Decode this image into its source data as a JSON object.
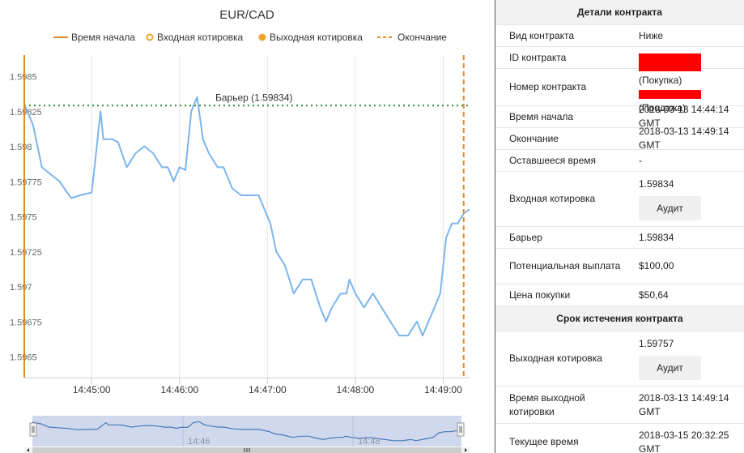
{
  "chart": {
    "title": "EUR/CAD",
    "legend": [
      {
        "name": "Время начала",
        "marker": "solid-line"
      },
      {
        "name": "Входная котировка",
        "marker": "ring"
      },
      {
        "name": "Выходная котировка",
        "marker": "dot"
      },
      {
        "name": "Окончание",
        "marker": "dashed-line"
      }
    ],
    "barrier_label": "Барьер (1.59834)",
    "navigator_labels": [
      "14:46",
      "14:48"
    ]
  },
  "chart_data": {
    "type": "line",
    "title": "EUR/CAD",
    "xlabel": "",
    "ylabel": "",
    "x_ticks": [
      "14:45:00",
      "14:46:00",
      "14:47:00",
      "14:48:00",
      "14:49:00"
    ],
    "y_ticks": [
      "1.5985",
      "1.59825",
      "1.598",
      "1.59775",
      "1.5975",
      "1.59725",
      "1.597",
      "1.59675",
      "1.5965"
    ],
    "xlim": [
      "14:44:14",
      "14:49:18"
    ],
    "ylim": [
      1.5964,
      1.5987
    ],
    "grid": "vertical",
    "barrier": 1.59834,
    "entry_spot": 1.59834,
    "exit_spot": 1.59757,
    "start_time": "14:44:14",
    "end_time": "14:49:14",
    "series": [
      {
        "x": [
          "14:44:14",
          "14:44:20",
          "14:44:26",
          "14:44:32",
          "14:44:38",
          "14:44:46",
          "14:44:52",
          "14:45:00",
          "14:45:02",
          "14:45:06",
          "14:45:08",
          "14:45:14",
          "14:45:18",
          "14:45:24",
          "14:45:30",
          "14:45:36",
          "14:45:42",
          "14:45:48",
          "14:45:52",
          "14:45:56",
          "14:46:00",
          "14:46:04",
          "14:46:08",
          "14:46:12",
          "14:46:16",
          "14:46:20",
          "14:46:26",
          "14:46:30",
          "14:46:36",
          "14:46:42",
          "14:46:48",
          "14:46:54",
          "14:47:02",
          "14:47:06",
          "14:47:12",
          "14:47:18",
          "14:47:24",
          "14:47:30",
          "14:47:36",
          "14:47:40",
          "14:47:44",
          "14:47:50",
          "14:47:54",
          "14:47:56",
          "14:48:00",
          "14:48:06",
          "14:48:12",
          "14:48:18",
          "14:48:24",
          "14:48:30",
          "14:48:36",
          "14:48:42",
          "14:48:46",
          "14:48:50",
          "14:48:54",
          "14:48:58",
          "14:49:02",
          "14:49:06",
          "14:49:10",
          "14:49:14",
          "14:49:18"
        ],
        "y": [
          1.59835,
          1.5982,
          1.5979,
          1.59785,
          1.5978,
          1.59768,
          1.5977,
          1.59772,
          1.5979,
          1.5983,
          1.5981,
          1.5981,
          1.59808,
          1.5979,
          1.598,
          1.59805,
          1.598,
          1.5979,
          1.5979,
          1.5978,
          1.5979,
          1.59788,
          1.5983,
          1.5984,
          1.5981,
          1.598,
          1.5979,
          1.5979,
          1.59775,
          1.5977,
          1.5977,
          1.5977,
          1.5975,
          1.5973,
          1.5972,
          1.597,
          1.5971,
          1.5971,
          1.5969,
          1.5968,
          1.5969,
          1.597,
          1.597,
          1.5971,
          1.597,
          1.5969,
          1.597,
          1.5969,
          1.5968,
          1.5967,
          1.5967,
          1.5968,
          1.5967,
          1.5968,
          1.5969,
          1.597,
          1.5974,
          1.5975,
          1.5975,
          1.59757,
          1.5976
        ]
      }
    ]
  },
  "details": {
    "header": "Детали контракта",
    "contract_type": {
      "label": "Вид контракта",
      "value": "Ниже"
    },
    "contract_id": {
      "label": "ID контракта"
    },
    "contract_number": {
      "label": "Номер контракта",
      "buy": "(Покупка)",
      "sell": "(Продажа)"
    },
    "start_time": {
      "label": "Время начала",
      "value": "2018-03-13 14:44:14 GMT"
    },
    "end_time": {
      "label": "Окончание",
      "value": "2018-03-13 14:49:14 GMT"
    },
    "remaining": {
      "label": "Оставшееся время",
      "value": "-"
    },
    "entry_spot": {
      "label": "Входная котировка",
      "value": "1.59834",
      "audit": "Аудит"
    },
    "barrier": {
      "label": "Барьер",
      "value": "1.59834"
    },
    "payout": {
      "label": "Потенциальная выплата",
      "value": "$100,00"
    },
    "price": {
      "label": "Цена покупки",
      "value": "$50,64"
    },
    "expiry_header": "Срок истечения контракта",
    "exit_spot": {
      "label": "Выходная котировка",
      "value": "1.59757",
      "audit": "Аудит"
    },
    "exit_time": {
      "label": "Время выходной котировки",
      "value": "2018-03-13 14:49:14 GMT"
    },
    "current_time": {
      "label": "Текущее время",
      "value": "2018-03-15 20:32:25 GMT"
    }
  },
  "colors": {
    "line": "#7cb5ec",
    "start_line": "#e08a2a",
    "end_line": "#e08a2a",
    "barrier_line": "#2e8b3a",
    "redaction": "#ff0000",
    "header_bg": "#f2f2f2"
  }
}
